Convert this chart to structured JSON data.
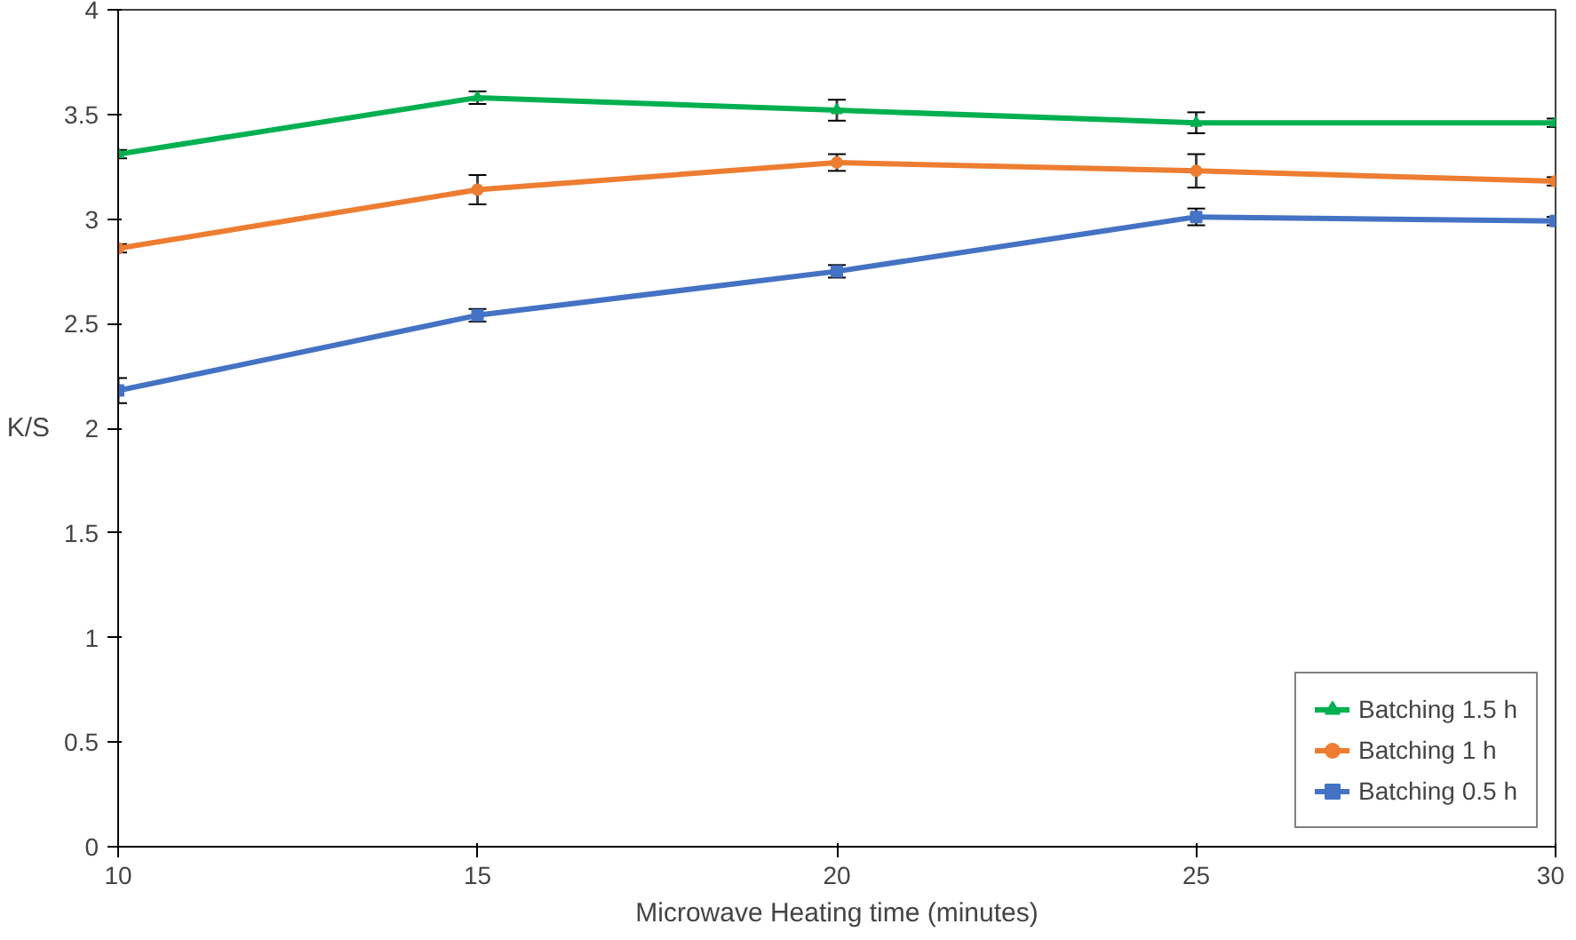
{
  "chart_data": {
    "type": "line",
    "xlabel": "Microwave Heating time (minutes)",
    "ylabel": "K/S",
    "x": [
      10,
      15,
      20,
      25,
      30
    ],
    "xlim": [
      10,
      30
    ],
    "xticks": [
      10,
      15,
      20,
      25,
      30
    ],
    "ylim": [
      0,
      4
    ],
    "yticks": [
      0,
      0.5,
      1,
      1.5,
      2,
      2.5,
      3,
      3.5,
      4
    ],
    "grid": false,
    "legend": "bottom right",
    "series": [
      {
        "name": "Batching 1.5 h",
        "color": "#00b050",
        "marker": "triangle",
        "values": [
          3.31,
          3.58,
          3.52,
          3.46,
          3.46
        ],
        "errors": [
          0.02,
          0.03,
          0.05,
          0.05,
          0.02
        ]
      },
      {
        "name": "Batching 1 h",
        "color": "#ed7d31",
        "marker": "circle",
        "values": [
          2.86,
          3.14,
          3.27,
          3.23,
          3.18
        ],
        "errors": [
          0.02,
          0.07,
          0.04,
          0.08,
          0.02
        ]
      },
      {
        "name": "Batching 0.5 h",
        "color": "#4472c4",
        "marker": "square",
        "values": [
          2.18,
          2.54,
          2.75,
          3.01,
          2.99
        ],
        "errors": [
          0.06,
          0.03,
          0.03,
          0.04,
          0.02
        ]
      }
    ]
  }
}
